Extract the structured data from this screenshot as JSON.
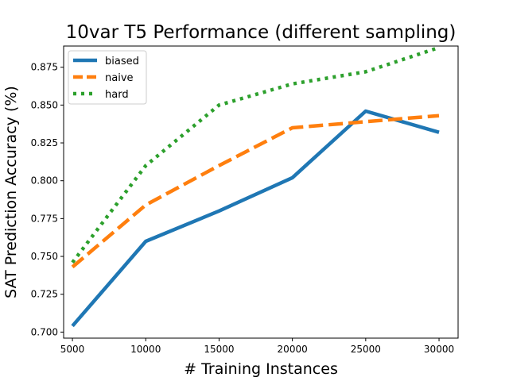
{
  "chart_data": {
    "type": "line",
    "title": "10var T5 Performance (different sampling)",
    "xlabel": "# Training Instances",
    "ylabel": "SAT Prediction Accuracy (%)",
    "x": [
      5000,
      10000,
      15000,
      20000,
      25000,
      30000
    ],
    "x_ticks": [
      "5000",
      "10000",
      "15000",
      "20000",
      "25000",
      "30000"
    ],
    "y_ticks": [
      "0.700",
      "0.725",
      "0.750",
      "0.775",
      "0.800",
      "0.825",
      "0.850",
      "0.875"
    ],
    "xlim": [
      4400,
      31300
    ],
    "ylim": [
      0.696,
      0.889
    ],
    "grid": false,
    "legend_position": "top-left",
    "series": [
      {
        "name": "biased",
        "color": "#1f77b4",
        "style": "solid",
        "values": [
          0.704,
          0.76,
          0.78,
          0.802,
          0.846,
          0.832
        ]
      },
      {
        "name": "naive",
        "color": "#ff7f0e",
        "style": "dashed",
        "values": [
          0.743,
          0.784,
          0.81,
          0.835,
          0.839,
          0.843
        ]
      },
      {
        "name": "hard",
        "color": "#2ca02c",
        "style": "dotted",
        "values": [
          0.746,
          0.81,
          0.85,
          0.864,
          0.872,
          0.888
        ]
      }
    ]
  }
}
